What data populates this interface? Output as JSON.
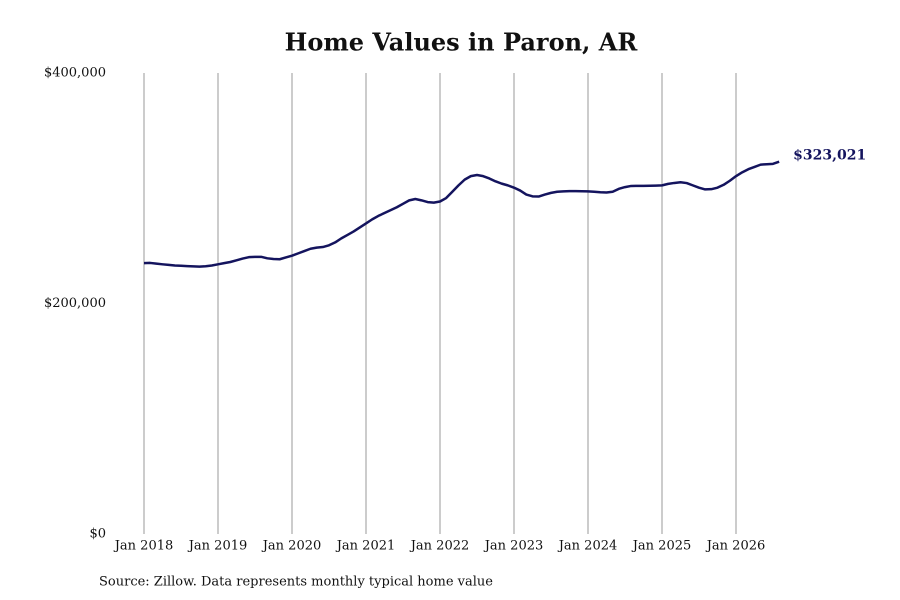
{
  "chart_data": {
    "type": "line",
    "title": "Home Values in Paron, AR",
    "source": "Source: Zillow. Data represents monthly typical home value",
    "x": [
      "2018-01",
      "2018-02",
      "2018-03",
      "2018-04",
      "2018-05",
      "2018-06",
      "2018-07",
      "2018-08",
      "2018-09",
      "2018-10",
      "2018-11",
      "2018-12",
      "2019-01",
      "2019-02",
      "2019-03",
      "2019-04",
      "2019-05",
      "2019-06",
      "2019-07",
      "2019-08",
      "2019-09",
      "2019-10",
      "2019-11",
      "2019-12",
      "2020-01",
      "2020-02",
      "2020-03",
      "2020-04",
      "2020-05",
      "2020-06",
      "2020-07",
      "2020-08",
      "2020-09",
      "2020-10",
      "2020-11",
      "2020-12",
      "2021-01",
      "2021-02",
      "2021-03",
      "2021-04",
      "2021-05",
      "2021-06",
      "2021-07",
      "2021-08",
      "2021-09",
      "2021-10",
      "2021-11",
      "2021-12",
      "2022-01",
      "2022-02",
      "2022-03",
      "2022-04",
      "2022-05",
      "2022-06",
      "2022-07",
      "2022-08",
      "2022-09",
      "2022-10",
      "2022-11",
      "2022-12",
      "2023-01",
      "2023-02",
      "2023-03",
      "2023-04",
      "2023-05",
      "2023-06",
      "2023-07",
      "2023-08",
      "2023-09",
      "2023-10",
      "2023-11",
      "2023-12",
      "2024-01",
      "2024-02",
      "2024-03",
      "2024-04",
      "2024-05",
      "2024-06",
      "2024-07",
      "2024-08",
      "2024-09",
      "2024-10",
      "2024-11",
      "2024-12",
      "2025-01",
      "2025-02",
      "2025-03",
      "2025-04",
      "2025-05",
      "2025-06",
      "2025-07",
      "2025-08",
      "2025-09",
      "2025-10",
      "2025-11",
      "2025-12",
      "2026-01",
      "2026-02",
      "2026-03",
      "2026-04",
      "2026-05",
      "2026-06",
      "2026-07",
      "2026-08"
    ],
    "series": [
      {
        "color": "#14145e",
        "values": [
          235000,
          235200,
          234600,
          234000,
          233500,
          233000,
          232700,
          232400,
          232200,
          232000,
          232300,
          233000,
          234000,
          235000,
          236000,
          237500,
          239000,
          240200,
          240500,
          240500,
          239200,
          238600,
          238400,
          240000,
          241500,
          243500,
          245500,
          247500,
          248500,
          249000,
          250500,
          253000,
          256500,
          259500,
          262500,
          266000,
          269500,
          273000,
          276000,
          278500,
          281000,
          283500,
          286500,
          289500,
          290700,
          289500,
          288000,
          287500,
          288500,
          291500,
          297000,
          302500,
          307500,
          310500,
          311500,
          310500,
          308500,
          306000,
          304000,
          302500,
          300500,
          298000,
          294500,
          293000,
          292800,
          294500,
          296000,
          297000,
          297300,
          297500,
          297500,
          297400,
          297300,
          297000,
          296500,
          296300,
          297000,
          299500,
          301000,
          302000,
          302100,
          302100,
          302200,
          302300,
          302500,
          303800,
          304600,
          305200,
          304500,
          302500,
          300500,
          299000,
          299200,
          300500,
          303000,
          306500,
          310500,
          313800,
          316500,
          318500,
          320500,
          320800,
          321200,
          323021
        ],
        "value_labels": [
          null,
          null,
          null,
          null,
          null,
          null,
          null,
          null,
          null,
          null,
          null,
          null,
          null,
          null,
          null,
          null,
          null,
          null,
          null,
          null,
          null,
          null,
          null,
          null,
          null,
          null,
          null,
          null,
          null,
          null,
          null,
          null,
          null,
          null,
          null,
          null,
          null,
          null,
          null,
          null,
          null,
          null,
          null,
          null,
          null,
          null,
          null,
          null,
          null,
          null,
          null,
          null,
          null,
          null,
          null,
          null,
          null,
          null,
          null,
          null,
          null,
          null,
          null,
          null,
          null,
          null,
          null,
          null,
          null,
          null,
          null,
          null,
          null,
          null,
          null,
          null,
          null,
          null,
          null,
          null,
          null,
          null,
          null,
          null,
          null,
          null,
          null,
          null,
          null,
          null,
          null,
          null,
          null,
          null,
          null,
          null,
          null,
          null,
          null,
          null,
          null,
          null,
          null,
          "$323,021"
        ]
      }
    ],
    "xticks": [
      {
        "value": "2018-01",
        "label": "Jan 2018"
      },
      {
        "value": "2019-01",
        "label": "Jan 2019"
      },
      {
        "value": "2020-01",
        "label": "Jan 2020"
      },
      {
        "value": "2021-01",
        "label": "Jan 2021"
      },
      {
        "value": "2022-01",
        "label": "Jan 2022"
      },
      {
        "value": "2023-01",
        "label": "Jan 2023"
      },
      {
        "value": "2024-01",
        "label": "Jan 2024"
      },
      {
        "value": "2025-01",
        "label": "Jan 2025"
      },
      {
        "value": "2026-01",
        "label": "Jan 2026"
      }
    ],
    "ylim": [
      0,
      400000
    ],
    "yticks": [
      {
        "value": 0,
        "label": "$0"
      },
      {
        "value": 200000,
        "label": "$200,000"
      },
      {
        "value": 400000,
        "label": "$400,000"
      }
    ],
    "grid": true
  }
}
